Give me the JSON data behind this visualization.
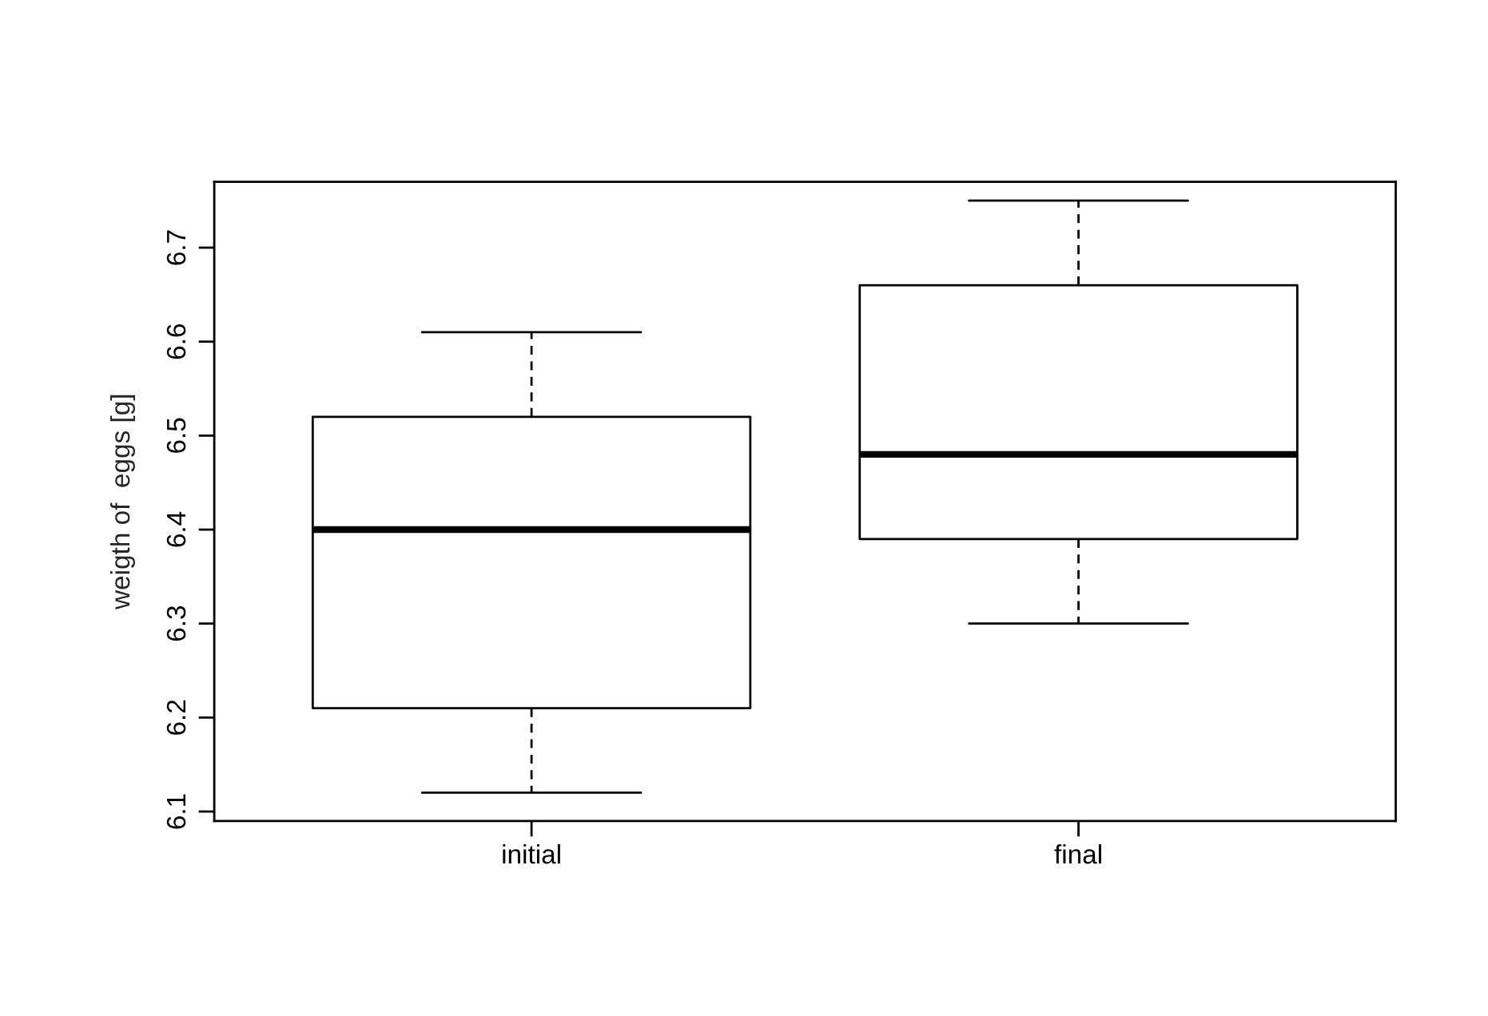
{
  "chart_data": {
    "type": "box",
    "ylabel": "weigth of  eggs [g]",
    "categories": [
      "initial",
      "final"
    ],
    "boxes": [
      {
        "low": 6.12,
        "q1": 6.21,
        "median": 6.4,
        "q3": 6.52,
        "high": 6.61
      },
      {
        "low": 6.3,
        "q1": 6.39,
        "median": 6.48,
        "q3": 6.66,
        "high": 6.75
      }
    ],
    "ylim": [
      6.09,
      6.77
    ],
    "yticks": [
      6.1,
      6.2,
      6.3,
      6.4,
      6.5,
      6.6,
      6.7
    ],
    "grid": false,
    "legend": false
  }
}
